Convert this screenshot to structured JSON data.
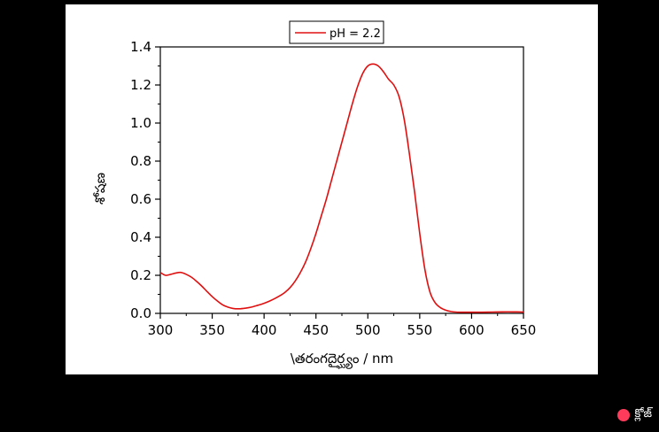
{
  "chart_data": {
    "type": "line",
    "title": "",
    "xlabel": "\\తరంగదైర్ఘ్యం / nm",
    "ylabel": "శోషణ",
    "xlim": [
      300,
      650
    ],
    "ylim": [
      0,
      1.4
    ],
    "x_ticks": [
      "300",
      "350",
      "400",
      "450",
      "500",
      "550",
      "600",
      "650"
    ],
    "y_ticks": [
      "0.0",
      "0.2",
      "0.4",
      "0.6",
      "0.8",
      "1.0",
      "1.2",
      "1.4"
    ],
    "grid": false,
    "legend_position": "top-center",
    "colors": {
      "series": "#e01010",
      "axis": "#000000"
    },
    "series": [
      {
        "name": "pH = 2.2",
        "x": [
          300,
          305,
          310,
          315,
          320,
          325,
          330,
          335,
          340,
          345,
          350,
          355,
          360,
          365,
          370,
          375,
          380,
          385,
          390,
          395,
          400,
          405,
          410,
          415,
          420,
          425,
          430,
          435,
          440,
          445,
          450,
          455,
          460,
          465,
          470,
          475,
          480,
          485,
          490,
          495,
          500,
          505,
          510,
          515,
          520,
          525,
          530,
          535,
          540,
          545,
          550,
          555,
          560,
          565,
          570,
          575,
          580,
          585,
          590,
          595,
          600,
          610,
          620,
          630,
          640,
          650
        ],
        "y": [
          0.215,
          0.2,
          0.205,
          0.212,
          0.215,
          0.205,
          0.19,
          0.168,
          0.143,
          0.115,
          0.088,
          0.065,
          0.045,
          0.033,
          0.026,
          0.024,
          0.026,
          0.03,
          0.036,
          0.044,
          0.053,
          0.064,
          0.077,
          0.092,
          0.11,
          0.135,
          0.17,
          0.215,
          0.27,
          0.34,
          0.42,
          0.51,
          0.6,
          0.7,
          0.8,
          0.9,
          1.0,
          1.1,
          1.19,
          1.26,
          1.3,
          1.31,
          1.3,
          1.27,
          1.23,
          1.2,
          1.14,
          1.02,
          0.84,
          0.64,
          0.42,
          0.23,
          0.11,
          0.055,
          0.03,
          0.017,
          0.01,
          0.007,
          0.006,
          0.006,
          0.006,
          0.006,
          0.007,
          0.008,
          0.008,
          0.007
        ]
      }
    ]
  },
  "ui": {
    "close_label": "క్లోజ్"
  }
}
